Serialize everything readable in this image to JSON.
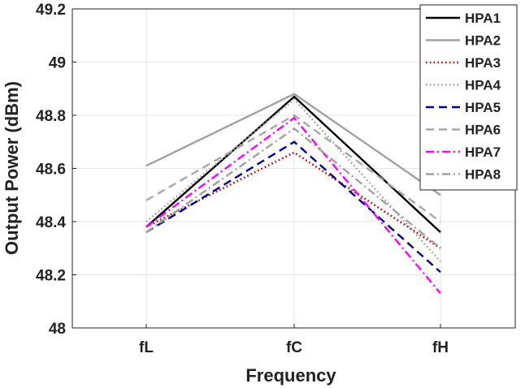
{
  "chart_data": {
    "type": "line",
    "xlabel": "Frequency",
    "ylabel": "Output Power (dBm)",
    "categories": [
      "fL",
      "fC",
      "fH"
    ],
    "ylim": [
      48,
      49.2
    ],
    "yticks": [
      "48",
      "48.2",
      "48.4",
      "48.6",
      "48.8",
      "49",
      "49.2"
    ],
    "grid": true,
    "legend_position": "top-right",
    "series": [
      {
        "name": "HPA1",
        "values": [
          48.38,
          48.87,
          48.36
        ],
        "color": "#000000",
        "dash": "solid"
      },
      {
        "name": "HPA2",
        "values": [
          48.61,
          48.88,
          48.5
        ],
        "color": "#a0a0a0",
        "dash": "solid"
      },
      {
        "name": "HPA3",
        "values": [
          48.38,
          48.66,
          48.3
        ],
        "color": "#c00000",
        "dash": "dotted"
      },
      {
        "name": "HPA4",
        "values": [
          48.4,
          48.86,
          48.25
        ],
        "color": "#a0a0a0",
        "dash": "dotted"
      },
      {
        "name": "HPA5",
        "values": [
          48.36,
          48.7,
          48.21
        ],
        "color": "#00008b",
        "dash": "dashed"
      },
      {
        "name": "HPA6",
        "values": [
          48.48,
          48.8,
          48.4
        ],
        "color": "#a8a8a8",
        "dash": "dashed"
      },
      {
        "name": "HPA7",
        "values": [
          48.38,
          48.79,
          48.13
        ],
        "color": "#ff00ff",
        "dash": "dashdot"
      },
      {
        "name": "HPA8",
        "values": [
          48.36,
          48.75,
          48.3
        ],
        "color": "#a0a0a0",
        "dash": "dashdot"
      }
    ]
  }
}
